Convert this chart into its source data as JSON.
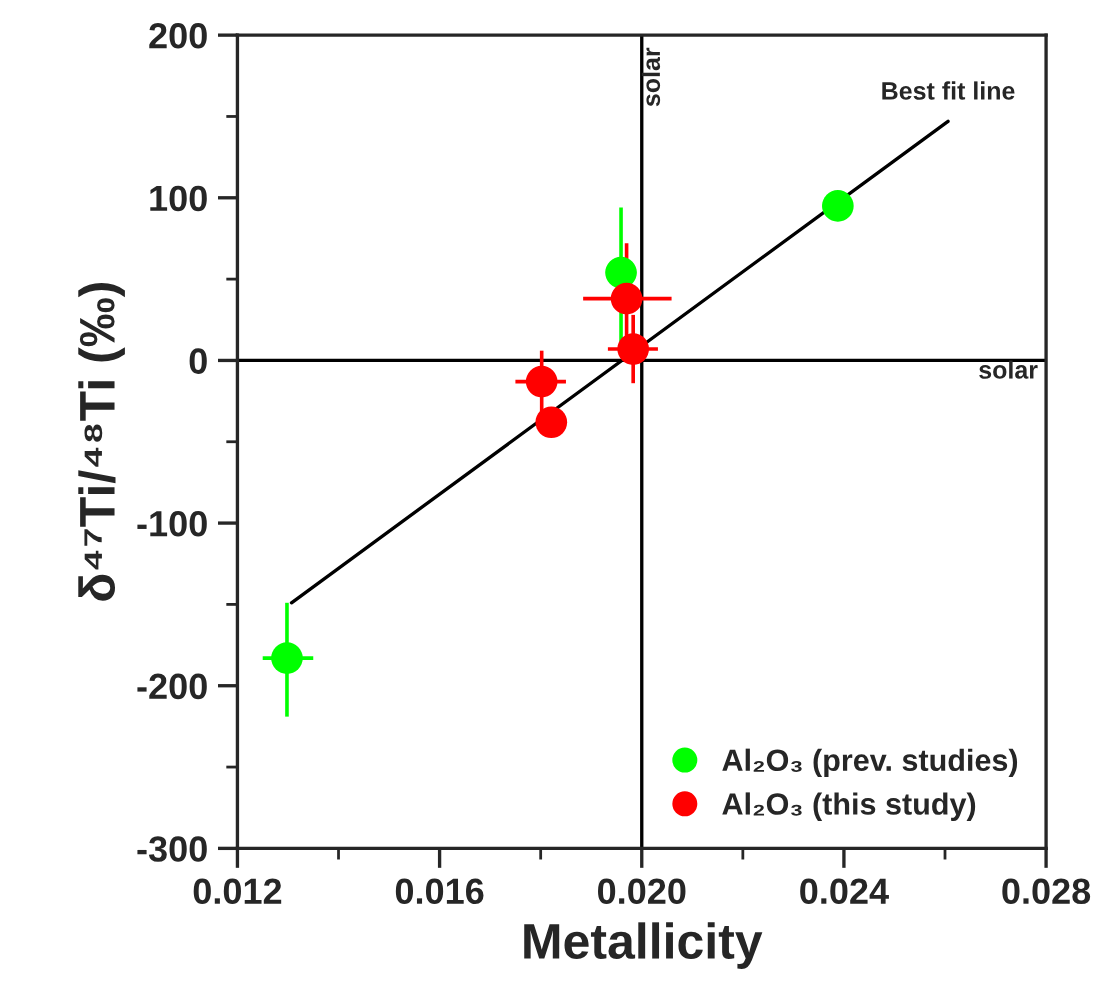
{
  "chart_data": {
    "type": "scatter",
    "xlabel": "Metallicity",
    "ylabel": "δ⁴⁷Ti/⁴⁸Ti (‰)",
    "series": [
      {
        "name": "Al₂O₃ (prev. studies)",
        "color": "#00ff00",
        "x": [
          0.01298,
          0.01959,
          0.02388
        ],
        "values": [
          -183,
          54,
          95
        ],
        "errors": [
          [
            -219,
            -149
          ],
          [
            11,
            94
          ],
          null
        ],
        "xerrors": [
          [
            0.0125,
            0.0135
          ],
          0.0003,
          0.0003
        ]
      },
      {
        "name": "Al₂O₃ (this study)",
        "color": "#ff0000",
        "x": [
          0.0197,
          0.01983,
          0.01802,
          0.01821
        ],
        "values": [
          38,
          7,
          -13,
          -38
        ],
        "errors": [
          [
            5,
            72
          ],
          21,
          19,
          8
        ],
        "xerrors": [
          [
            0.01884,
            0.02059
          ],
          [
            0.01933,
            0.02032
          ],
          [
            0.0175,
            0.0185
          ],
          0.0001
        ]
      },
      {
        "type": "line",
        "marker": "none",
        "color": "#000000",
        "x": [
          0.01307,
          0.02606
        ],
        "values": [
          -149,
          147
        ]
      }
    ],
    "ref_lines": [
      {
        "axis": "x",
        "value": 0.02,
        "label": "solar",
        "color": "#000000"
      },
      {
        "axis": "y",
        "value": 0,
        "label": "solar",
        "color": "#000000"
      }
    ],
    "annotations": [
      {
        "text": "Best fit line",
        "x": 0.02606,
        "y": 147
      }
    ],
    "xlim": [
      0.012,
      0.028
    ],
    "xticks": [
      0.012,
      0.016,
      {
        "value": 0.02,
        "label": "0.020"
      },
      0.024,
      0.028
    ],
    "ylim": [
      -300,
      200
    ],
    "yticks": [
      -300,
      -200,
      -100,
      0,
      100,
      200
    ],
    "marker": "circle",
    "legend": "bottom right",
    "grid": false
  }
}
